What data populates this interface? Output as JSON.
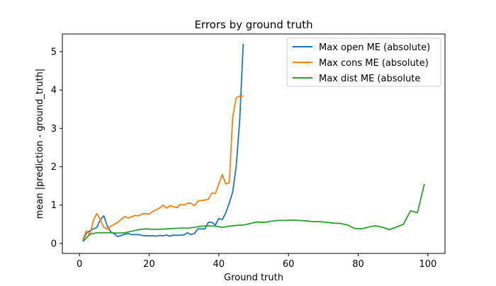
{
  "chart_data": {
    "type": "line",
    "title": "Errors by ground truth",
    "xlabel": "Ground truth",
    "ylabel": "mean |prediction - ground_truth|",
    "xlim": [
      -4.9,
      104.9
    ],
    "ylim": [
      -0.26,
      5.46
    ],
    "xticks": [
      0,
      20,
      40,
      60,
      80,
      100
    ],
    "yticks": [
      0,
      1,
      2,
      3,
      4,
      5
    ],
    "grid": false,
    "legend_position": "top-right",
    "series": [
      {
        "name": "Max open ME (absolute)",
        "color": "#1f77b4",
        "x": [
          1,
          2,
          3,
          4,
          5,
          6,
          7,
          8,
          9,
          10,
          11,
          12,
          13,
          14,
          15,
          16,
          17,
          18,
          19,
          20,
          21,
          22,
          23,
          24,
          25,
          26,
          27,
          28,
          29,
          30,
          31,
          32,
          33,
          34,
          35,
          36,
          37,
          38,
          39,
          40,
          41,
          42,
          43,
          44,
          45,
          46,
          47
        ],
        "y": [
          0.08,
          0.27,
          0.33,
          0.38,
          0.42,
          0.62,
          0.72,
          0.45,
          0.3,
          0.25,
          0.18,
          0.21,
          0.24,
          0.26,
          0.23,
          0.23,
          0.23,
          0.21,
          0.2,
          0.2,
          0.2,
          0.19,
          0.21,
          0.2,
          0.22,
          0.19,
          0.22,
          0.21,
          0.22,
          0.22,
          0.28,
          0.23,
          0.26,
          0.38,
          0.38,
          0.38,
          0.55,
          0.55,
          0.48,
          0.65,
          0.62,
          0.8,
          1.05,
          1.35,
          2.02,
          3.22,
          5.2
        ]
      },
      {
        "name": "Max cons ME (absolute)",
        "color": "#ff7f0e",
        "x": [
          1,
          2,
          3,
          4,
          5,
          6,
          7,
          8,
          9,
          10,
          11,
          12,
          13,
          14,
          15,
          16,
          17,
          18,
          19,
          20,
          21,
          22,
          23,
          24,
          25,
          26,
          27,
          28,
          29,
          30,
          31,
          32,
          33,
          34,
          35,
          36,
          37,
          38,
          39,
          40,
          41,
          42,
          43,
          44,
          45,
          46,
          47
        ],
        "y": [
          0.1,
          0.33,
          0.22,
          0.6,
          0.78,
          0.62,
          0.42,
          0.38,
          0.45,
          0.5,
          0.55,
          0.63,
          0.7,
          0.66,
          0.7,
          0.73,
          0.72,
          0.77,
          0.78,
          0.76,
          0.83,
          0.88,
          0.92,
          1.0,
          0.92,
          0.98,
          0.96,
          0.93,
          1.02,
          1.0,
          1.05,
          1.05,
          0.98,
          1.1,
          1.12,
          1.13,
          1.15,
          1.32,
          1.3,
          1.55,
          1.8,
          1.55,
          1.58,
          3.3,
          3.8,
          3.84,
          3.84
        ]
      },
      {
        "name": "Max dist ME (absolute",
        "color": "#2ca02c",
        "x": [
          1,
          3,
          5,
          7,
          9,
          11,
          13,
          15,
          17,
          19,
          21,
          23,
          25,
          27,
          29,
          31,
          33,
          35,
          37,
          39,
          41,
          43,
          45,
          47,
          49,
          51,
          53,
          55,
          57,
          59,
          61,
          63,
          65,
          67,
          69,
          71,
          73,
          75,
          77,
          79,
          81,
          83,
          85,
          87,
          89,
          91,
          93,
          95,
          97,
          99
        ],
        "y": [
          0.05,
          0.24,
          0.28,
          0.28,
          0.28,
          0.27,
          0.28,
          0.32,
          0.36,
          0.38,
          0.37,
          0.37,
          0.38,
          0.39,
          0.4,
          0.4,
          0.42,
          0.45,
          0.46,
          0.45,
          0.42,
          0.45,
          0.47,
          0.48,
          0.52,
          0.56,
          0.55,
          0.58,
          0.6,
          0.6,
          0.61,
          0.6,
          0.59,
          0.57,
          0.57,
          0.55,
          0.53,
          0.52,
          0.48,
          0.39,
          0.38,
          0.43,
          0.46,
          0.42,
          0.36,
          0.43,
          0.5,
          0.85,
          0.8,
          1.55
        ]
      }
    ]
  }
}
